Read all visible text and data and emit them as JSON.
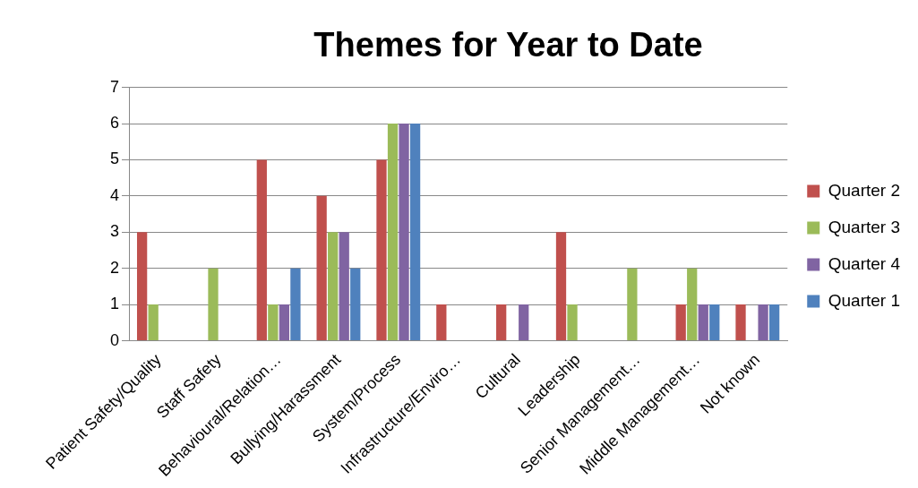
{
  "chart_data": {
    "type": "bar",
    "title": "Themes for Year to Date",
    "categories": [
      "Patient Safety/Quality",
      "Staff Safety",
      "Behavioural/Relation…",
      "Bullying/Harassment",
      "System/Process",
      "Infrastructure/Enviro…",
      "Cultural",
      "Leadership",
      "Senior Management…",
      "Middle Management…",
      "Not known"
    ],
    "series": [
      {
        "name": "Quarter 2",
        "color": "#c0504d",
        "values": [
          3,
          0,
          5,
          4,
          5,
          1,
          1,
          3,
          0,
          1,
          1
        ]
      },
      {
        "name": "Quarter 3",
        "color": "#9bbb59",
        "values": [
          1,
          2,
          1,
          3,
          6,
          0,
          0,
          1,
          2,
          2,
          0
        ]
      },
      {
        "name": "Quarter 4",
        "color": "#8064a2",
        "values": [
          0,
          0,
          1,
          3,
          6,
          0,
          1,
          0,
          0,
          1,
          1
        ]
      },
      {
        "name": "Quarter 1",
        "color": "#4f81bd",
        "values": [
          0,
          0,
          2,
          2,
          6,
          0,
          0,
          0,
          0,
          1,
          1
        ]
      }
    ],
    "ylim": [
      0,
      7
    ],
    "yticks": [
      0,
      1,
      2,
      3,
      4,
      5,
      6,
      7
    ],
    "grid": "y",
    "legend": "right"
  }
}
